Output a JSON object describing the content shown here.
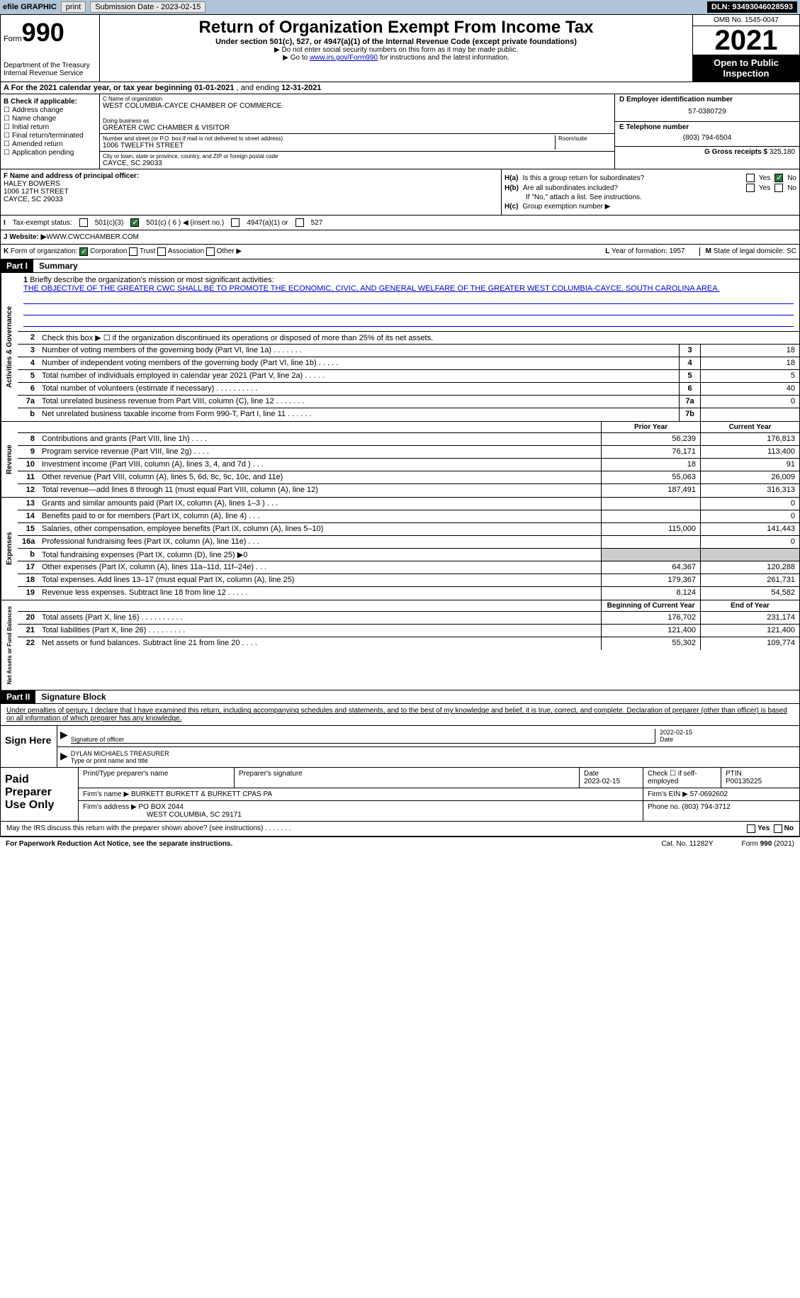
{
  "topbar": {
    "efile": "efile GRAPHIC",
    "print": "print",
    "subdate_lbl": "Submission Date - ",
    "subdate": "2023-02-15",
    "dln_lbl": "DLN: ",
    "dln": "93493046028593"
  },
  "header": {
    "form": "Form",
    "num": "990",
    "dept": "Department of the Treasury",
    "irs": "Internal Revenue Service",
    "title": "Return of Organization Exempt From Income Tax",
    "subtitle": "Under section 501(c), 527, or 4947(a)(1) of the Internal Revenue Code (except private foundations)",
    "note1": "▶ Do not enter social security numbers on this form as it may be made public.",
    "note2_pre": "▶ Go to ",
    "note2_link": "www.irs.gov/Form990",
    "note2_post": " for instructions and the latest information.",
    "omb": "OMB No. 1545-0047",
    "year": "2021",
    "open": "Open to Public Inspection"
  },
  "row_a": {
    "text": "A For the 2021 calendar year, or tax year beginning ",
    "begin": "01-01-2021",
    "mid": "   , and ending ",
    "end": "12-31-2021"
  },
  "col_b": {
    "lbl": "B Check if applicable:",
    "addr": "Address change",
    "name": "Name change",
    "init": "Initial return",
    "final": "Final return/terminated",
    "amend": "Amended return",
    "app": "Application pending"
  },
  "col_c": {
    "name_lbl": "C Name of organization",
    "name": "WEST COLUMBIA-CAYCE CHAMBER OF COMMERCE",
    "dba_lbl": "Doing business as",
    "dba": "GREATER CWC CHAMBER & VISITOR",
    "street_lbl": "Number and street (or P.O. box if mail is not delivered to street address)",
    "street": "1006 TWELFTH STREET",
    "room_lbl": "Room/suite",
    "city_lbl": "City or town, state or province, country, and ZIP or foreign postal code",
    "city": "CAYCE, SC  29033"
  },
  "col_d": {
    "ein_lbl": "D Employer identification number",
    "ein": "57-0380729",
    "tel_lbl": "E Telephone number",
    "tel": "(803) 794-6504",
    "gross_lbl": "G Gross receipts $ ",
    "gross": "325,180"
  },
  "box_f": {
    "lbl": "F Name and address of principal officer:",
    "name": "HALEY BOWERS",
    "street": "1006 12TH STREET",
    "city": "CAYCE, SC  29033"
  },
  "box_h": {
    "a_lbl": "H(a)",
    "a_text": "Is this a group return for subordinates?",
    "b_lbl": "H(b)",
    "b_text": "Are all subordinates included?",
    "note": "If \"No,\" attach a list. See instructions.",
    "c_lbl": "H(c)",
    "c": "Group exemption number ▶",
    "yes": "Yes",
    "no": "No"
  },
  "row_i": {
    "lbl": "I",
    "text": "Tax-exempt status:",
    "o1": "501(c)(3)",
    "o2": "501(c) ( 6 ) ◀ (insert no.)",
    "o3": "4947(a)(1) or",
    "o4": "527"
  },
  "row_j": {
    "lbl": "J",
    "text": "Website: ▶",
    "url": "  WWW.CWCCHAMBER.COM"
  },
  "row_k": {
    "lbl": "K",
    "text": "Form of organization:",
    "corp": "Corporation",
    "trust": "Trust",
    "assoc": "Association",
    "other": "Other ▶",
    "l_lbl": "L",
    "l_text": "Year of formation: ",
    "l_val": "1957",
    "m_lbl": "M",
    "m_text": "State of legal domicile: ",
    "m_val": "SC"
  },
  "part1": {
    "hdr": "Part I",
    "title": "Summary"
  },
  "mission": {
    "lbl": "1",
    "text": "Briefly describe the organization's mission or most significant activities:",
    "val": "THE OBJECTIVE OF THE GREATER CWC SHALL BE TO PROMOTE THE ECONOMIC, CIVIC, AND GENERAL WELFARE OF THE GREATER WEST COLUMBIA-CAYCE, SOUTH CAROLINA AREA."
  },
  "line2": {
    "ln": "2",
    "text": "Check this box ▶ ☐ if the organization discontinued its operations or disposed of more than 25% of its net assets."
  },
  "lines_gov": [
    {
      "ln": "3",
      "desc": "Number of voting members of the governing body (Part VI, line 1a)   .    .    .    .    .    .    .",
      "box": "3",
      "val": "18"
    },
    {
      "ln": "4",
      "desc": "Number of independent voting members of the governing body (Part VI, line 1b)    .    .    .    .    .",
      "box": "4",
      "val": "18"
    },
    {
      "ln": "5",
      "desc": "Total number of individuals employed in calendar year 2021 (Part V, line 2a)    .    .    .    .    .",
      "box": "5",
      "val": "5"
    },
    {
      "ln": "6",
      "desc": "Total number of volunteers (estimate if necessary)    .    .    .    .    .    .    .    .    .    .",
      "box": "6",
      "val": "40"
    },
    {
      "ln": "7a",
      "desc": "Total unrelated business revenue from Part VIII, column (C), line 12    .    .    .    .    .    .    .",
      "box": "7a",
      "val": "0"
    },
    {
      "ln": "b",
      "desc": "Net unrelated business taxable income from Form 990-T, Part I, line 11    .    .    .    .    .    .",
      "box": "7b",
      "val": ""
    }
  ],
  "colhdr": {
    "prior": "Prior Year",
    "current": "Current Year",
    "begin": "Beginning of Current Year",
    "end": "End of Year"
  },
  "lines_rev": [
    {
      "ln": "8",
      "desc": "Contributions and grants (Part VIII, line 1h)    .    .    .    .",
      "v1": "56,239",
      "v2": "176,813"
    },
    {
      "ln": "9",
      "desc": "Program service revenue (Part VIII, line 2g)    .    .    .    .",
      "v1": "76,171",
      "v2": "113,400"
    },
    {
      "ln": "10",
      "desc": "Investment income (Part VIII, column (A), lines 3, 4, and 7d )    .    .    .",
      "v1": "18",
      "v2": "91"
    },
    {
      "ln": "11",
      "desc": "Other revenue (Part VIII, column (A), lines 5, 6d, 8c, 9c, 10c, and 11e)",
      "v1": "55,063",
      "v2": "26,009"
    },
    {
      "ln": "12",
      "desc": "Total revenue—add lines 8 through 11 (must equal Part VIII, column (A), line 12)",
      "v1": "187,491",
      "v2": "316,313"
    }
  ],
  "lines_exp": [
    {
      "ln": "13",
      "desc": "Grants and similar amounts paid (Part IX, column (A), lines 1–3 )    .    .    .",
      "v1": "",
      "v2": "0"
    },
    {
      "ln": "14",
      "desc": "Benefits paid to or for members (Part IX, column (A), line 4)    .    .    .",
      "v1": "",
      "v2": "0"
    },
    {
      "ln": "15",
      "desc": "Salaries, other compensation, employee benefits (Part IX, column (A), lines 5–10)",
      "v1": "115,000",
      "v2": "141,443"
    },
    {
      "ln": "16a",
      "desc": "Professional fundraising fees (Part IX, column (A), line 11e)    .    .    .",
      "v1": "",
      "v2": "0"
    },
    {
      "ln": "b",
      "desc": "Total fundraising expenses (Part IX, column (D), line 25) ▶0",
      "v1": "shade",
      "v2": "shade"
    },
    {
      "ln": "17",
      "desc": "Other expenses (Part IX, column (A), lines 11a–11d, 11f–24e)    .    .    .",
      "v1": "64,367",
      "v2": "120,288"
    },
    {
      "ln": "18",
      "desc": "Total expenses. Add lines 13–17 (must equal Part IX, column (A), line 25)",
      "v1": "179,367",
      "v2": "261,731"
    },
    {
      "ln": "19",
      "desc": "Revenue less expenses. Subtract line 18 from line 12    .    .    .    .    .",
      "v1": "8,124",
      "v2": "54,582"
    }
  ],
  "lines_net": [
    {
      "ln": "20",
      "desc": "Total assets (Part X, line 16)    .    .    .    .    .    .    .    .    .    .",
      "v1": "176,702",
      "v2": "231,174"
    },
    {
      "ln": "21",
      "desc": "Total liabilities (Part X, line 26)    .    .    .    .    .    .    .    .    .",
      "v1": "121,400",
      "v2": "121,400"
    },
    {
      "ln": "22",
      "desc": "Net assets or fund balances. Subtract line 21 from line 20    .    .    .    .",
      "v1": "55,302",
      "v2": "109,774"
    }
  ],
  "vtabs": {
    "gov": "Activities & Governance",
    "rev": "Revenue",
    "exp": "Expenses",
    "net": "Net Assets or Fund Balances"
  },
  "part2": {
    "hdr": "Part II",
    "title": "Signature Block"
  },
  "penalty": "Under penalties of perjury, I declare that I have examined this return, including accompanying schedules and statements, and to the best of my knowledge and belief, it is true, correct, and complete. Declaration of preparer (other than officer) is based on all information of which preparer has any knowledge.",
  "sign": {
    "here": "Sign Here",
    "sig_lbl": "Signature of officer",
    "date": "2022-02-15",
    "date_lbl": "Date",
    "name": "DYLAN MICHIAELS  TREASURER",
    "name_lbl": "Type or print name and title"
  },
  "prep": {
    "title": "Paid Preparer Use Only",
    "print_lbl": "Print/Type preparer's name",
    "sig_lbl": "Preparer's signature",
    "date_lbl": "Date",
    "date": "2023-02-15",
    "check_lbl": "Check ☐ if self-employed",
    "ptin_lbl": "PTIN",
    "ptin": "P00135225",
    "firm_name_lbl": "Firm's name    ▶",
    "firm_name": "BURKETT BURKETT & BURKETT CPAS PA",
    "firm_ein_lbl": "Firm's EIN ▶",
    "firm_ein": "57-0692602",
    "firm_addr_lbl": "Firm's address ▶",
    "firm_addr1": "PO BOX 2044",
    "firm_addr2": "WEST COLUMBIA, SC  29171",
    "phone_lbl": "Phone no. ",
    "phone": "(803) 794-3712"
  },
  "discuss": {
    "text": "May the IRS discuss this return with the preparer shown above? (see instructions)    .    .    .    .    .    .    .",
    "yes": "Yes",
    "no": "No"
  },
  "footer": {
    "pra": "For Paperwork Reduction Act Notice, see the separate instructions.",
    "cat": "Cat. No. 11282Y",
    "form": "Form 990 (2021)"
  }
}
